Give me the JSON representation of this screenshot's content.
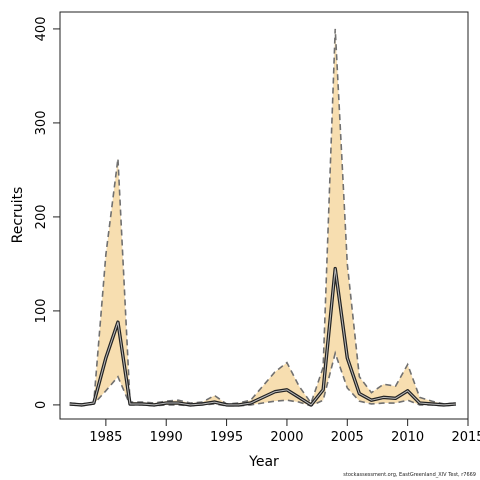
{
  "chart_data": {
    "type": "line",
    "title": "",
    "xlabel": "Year",
    "ylabel": "Recruits",
    "xlim": [
      1981.2,
      2015
    ],
    "ylim": [
      -15,
      418
    ],
    "x_ticks": [
      1985,
      1990,
      1995,
      2000,
      2005,
      2010,
      2015
    ],
    "y_ticks": [
      0,
      100,
      200,
      300,
      400
    ],
    "grid": false,
    "legend": "none",
    "colors": {
      "band": "#f7deb0",
      "bounds": "#707070",
      "estimate": "#222222",
      "estimate_highlight": "#bbbbbb"
    },
    "x": [
      1982,
      1983,
      1984,
      1985,
      1986,
      1987,
      1988,
      1989,
      1990,
      1991,
      1992,
      1993,
      1994,
      1995,
      1996,
      1997,
      1998,
      1999,
      2000,
      2001,
      2002,
      2003,
      2004,
      2005,
      2006,
      2007,
      2008,
      2009,
      2010,
      2011,
      2012,
      2013,
      2014
    ],
    "series": [
      {
        "role": "estimate",
        "values": [
          1,
          0,
          2,
          50,
          88,
          1,
          1,
          0,
          2,
          2,
          0,
          1,
          3,
          0,
          0,
          2,
          8,
          14,
          16,
          8,
          0,
          16,
          145,
          50,
          12,
          5,
          8,
          7,
          15,
          2,
          1,
          0,
          1
        ]
      },
      {
        "role": "upper",
        "values": [
          2,
          1,
          3,
          160,
          262,
          3,
          3,
          2,
          4,
          5,
          2,
          3,
          10,
          1,
          2,
          5,
          20,
          35,
          45,
          20,
          2,
          40,
          400,
          150,
          30,
          13,
          22,
          20,
          43,
          8,
          4,
          1,
          2
        ]
      },
      {
        "role": "lower",
        "values": [
          0,
          -1,
          1,
          15,
          30,
          0,
          0,
          -1,
          0,
          0,
          -1,
          0,
          1,
          -1,
          -1,
          0,
          2,
          4,
          5,
          3,
          -1,
          5,
          55,
          18,
          4,
          1,
          2,
          2,
          5,
          0,
          0,
          -1,
          0
        ]
      }
    ]
  },
  "footnote": "stockassessment.org, EastGreenland_XIV Test, r7669"
}
